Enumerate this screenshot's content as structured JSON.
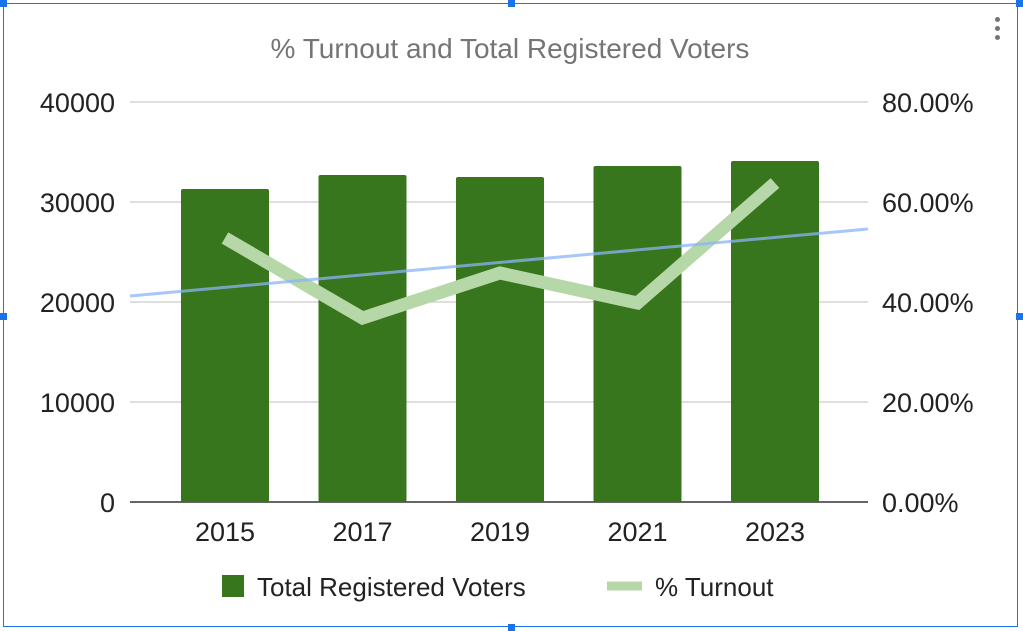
{
  "chart_data": {
    "type": "bar+line",
    "title": "% Turnout and Total Registered Voters",
    "categories": [
      "2015",
      "2017",
      "2019",
      "2021",
      "2023"
    ],
    "series": [
      {
        "name": "Total Registered Voters",
        "type": "bar",
        "axis": "left",
        "color": "#38761d",
        "values": [
          31300,
          32700,
          32500,
          33600,
          34100
        ]
      },
      {
        "name": "% Turnout",
        "type": "line",
        "axis": "right",
        "color": "#b6d7a8",
        "values": [
          52.8,
          36.8,
          45.8,
          39.8,
          63.8
        ]
      }
    ],
    "trendline": {
      "series": "% Turnout",
      "color": "#8ab4f8",
      "start": 41.2,
      "end": 54.6
    },
    "left_axis": {
      "ylim": [
        0,
        40000
      ],
      "ticks": [
        "0",
        "10000",
        "20000",
        "30000",
        "40000"
      ]
    },
    "right_axis": {
      "ylim": [
        0,
        80
      ],
      "ticks": [
        "0.00%",
        "20.00%",
        "40.00%",
        "60.00%",
        "80.00%"
      ]
    },
    "grid": true,
    "legend": "bottom"
  }
}
